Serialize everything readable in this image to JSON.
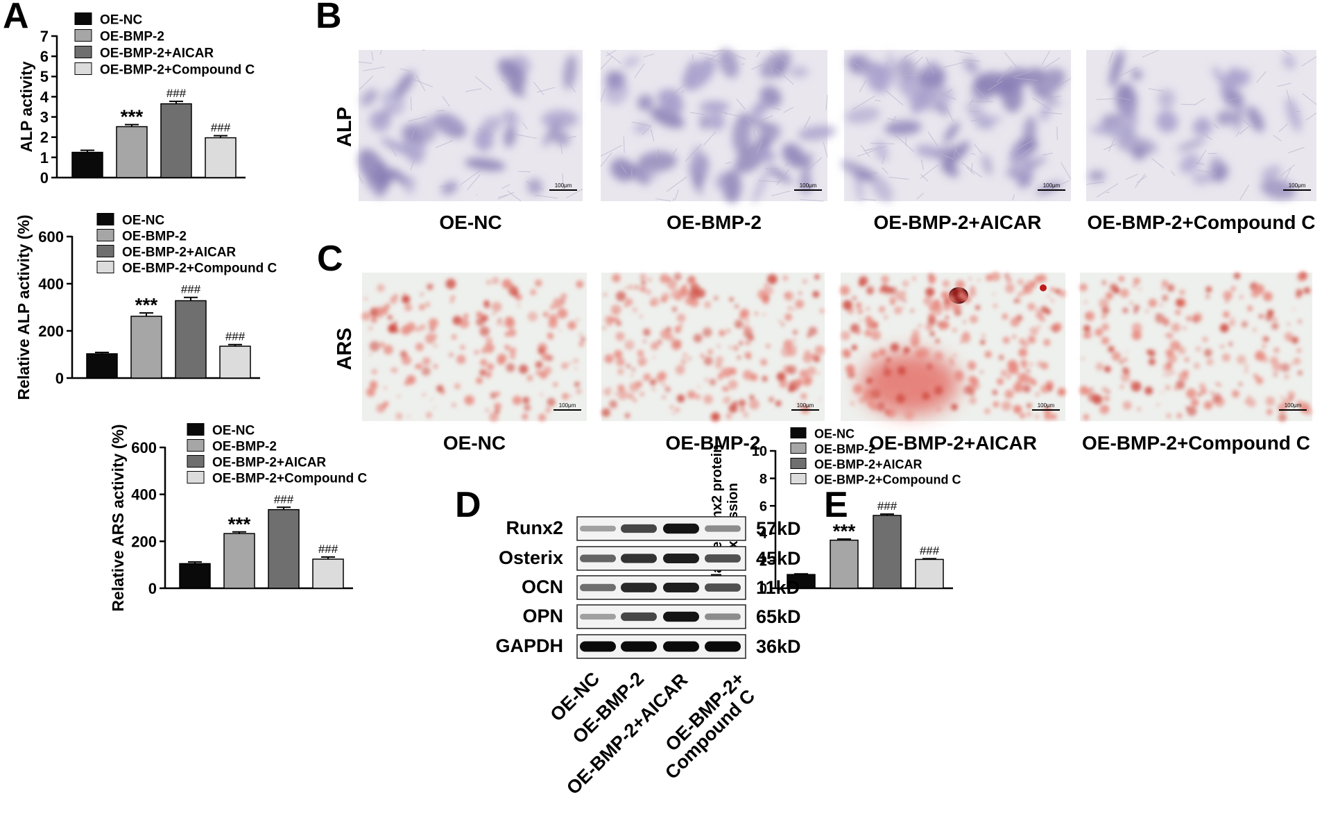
{
  "panel_letters": [
    "A",
    "B",
    "C",
    "D",
    "E"
  ],
  "colors": {
    "OE-NC": "#0a0a0a",
    "OE-BMP-2": "#a6a6a6",
    "OE-BMP-2+AICAR": "#6f6f6f",
    "OE-BMP-2+Compound C": "#dcdcdc"
  },
  "legend": [
    "OE-NC",
    "OE-BMP-2",
    "OE-BMP-2+AICAR",
    "OE-BMP-2+Compound C"
  ],
  "micrographs": {
    "alp_label": "ALP",
    "ars_label": "ARS",
    "scale_bar": "100μm",
    "groups": [
      "OE-NC",
      "OE-BMP-2",
      "OE-BMP-2+AICAR",
      "OE-BMP-2+Compound C"
    ]
  },
  "western_blot": {
    "proteins": [
      {
        "name": "Runx2",
        "size": "57kD",
        "intensity": [
          0.25,
          0.7,
          0.95,
          0.35
        ]
      },
      {
        "name": "Osterix",
        "size": "45kD",
        "intensity": [
          0.55,
          0.8,
          0.9,
          0.65
        ]
      },
      {
        "name": "OCN",
        "size": "11kD",
        "intensity": [
          0.5,
          0.85,
          0.9,
          0.65
        ]
      },
      {
        "name": "OPN",
        "size": "65kD",
        "intensity": [
          0.25,
          0.7,
          0.95,
          0.35
        ]
      },
      {
        "name": "GAPDH",
        "size": "36kD",
        "intensity": [
          1.0,
          1.0,
          1.0,
          1.0
        ]
      }
    ],
    "lanes": [
      "OE-NC",
      "OE-BMP-2",
      "OE-BMP-2+AICAR",
      "OE-BMP-2+",
      "Compound C"
    ]
  },
  "chart_data": [
    {
      "type": "bar",
      "categories": [
        "OE-NC",
        "OE-BMP-2",
        "OE-BMP-2+AICAR",
        "OE-BMP-2+Compound C"
      ],
      "values": [
        1.25,
        2.52,
        3.65,
        1.97
      ],
      "errors": [
        0.1,
        0.1,
        0.12,
        0.1
      ],
      "annotations": [
        "",
        "***",
        "###",
        "###"
      ],
      "ylabel": "ALP activity",
      "ylim": [
        0,
        7
      ],
      "yticks": [
        0,
        1,
        2,
        3,
        4,
        5,
        6,
        7
      ]
    },
    {
      "type": "bar",
      "categories": [
        "OE-NC",
        "OE-BMP-2",
        "OE-BMP-2+AICAR",
        "OE-BMP-2+Compound C"
      ],
      "values": [
        103,
        262,
        328,
        135
      ],
      "errors": [
        6,
        14,
        14,
        7
      ],
      "annotations": [
        "",
        "***",
        "###",
        "###"
      ],
      "ylabel": "Relative ALP activity (%)",
      "ylim": [
        0,
        600
      ],
      "yticks": [
        0,
        200,
        400,
        600
      ]
    },
    {
      "type": "bar",
      "categories": [
        "OE-NC",
        "OE-BMP-2",
        "OE-BMP-2+AICAR",
        "OE-BMP-2+Compound C"
      ],
      "values": [
        105,
        233,
        335,
        124
      ],
      "errors": [
        7,
        7,
        10,
        9
      ],
      "annotations": [
        "",
        "***",
        "###",
        "###"
      ],
      "ylabel": "Relative ARS activity (%)",
      "ylim": [
        0,
        600
      ],
      "yticks": [
        0,
        200,
        400,
        600
      ]
    },
    {
      "type": "bar",
      "categories": [
        "OE-NC",
        "OE-BMP-2",
        "OE-BMP-2+AICAR",
        "OE-BMP-2+Compound C"
      ],
      "values": [
        1.0,
        3.5,
        5.3,
        2.1
      ],
      "errors": [
        0.05,
        0.08,
        0.1,
        0.05
      ],
      "annotations": [
        "",
        "***",
        "###",
        "###"
      ],
      "ylabel": "Relative Runx2 protein expression",
      "ylabel_lines": [
        "Relative Runx2 protein",
        "expression"
      ],
      "ylim": [
        0,
        10
      ],
      "yticks": [
        0,
        2,
        4,
        6,
        8,
        10
      ]
    }
  ]
}
